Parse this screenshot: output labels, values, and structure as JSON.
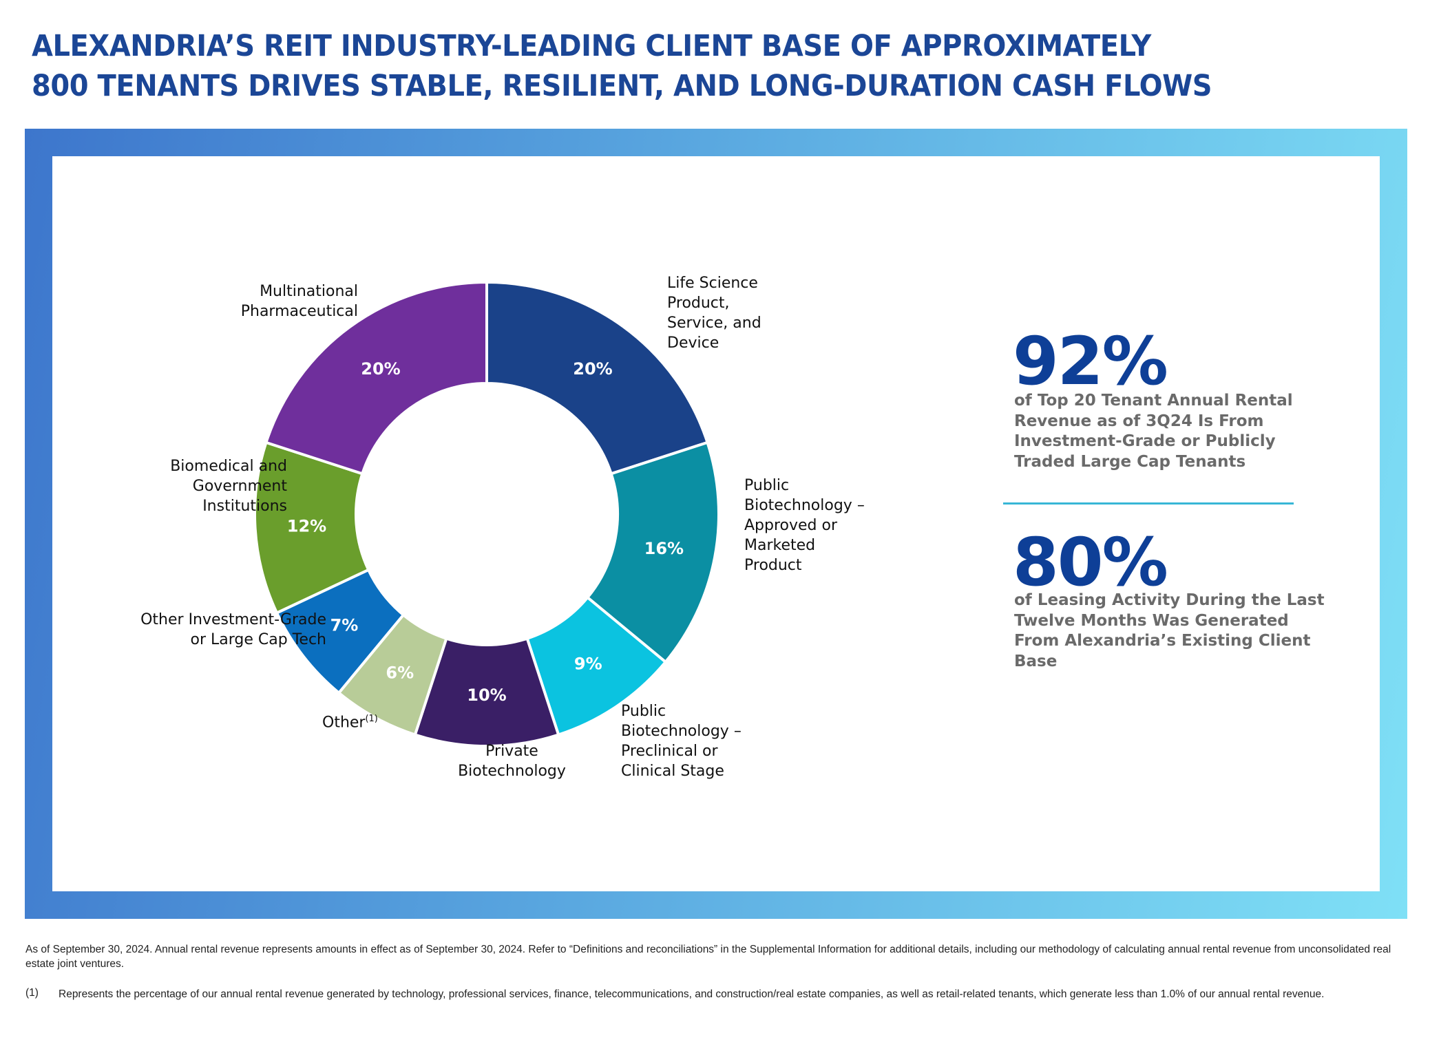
{
  "title": {
    "line1": "ALEXANDRIA’S REIT INDUSTRY-LEADING CLIENT BASE OF APPROXIMATELY",
    "line2": "800 TENANTS DRIVES STABLE, RESILIENT, AND LONG-DURATION CASH FLOWS"
  },
  "colors": {
    "title": "#1b4696",
    "stat": "#0e3f97",
    "stat_desc": "#6a6a6a",
    "divider": "#37b6d6",
    "frame_start": "#3d76cc",
    "frame_end": "#7fe0f6"
  },
  "chart_data": {
    "type": "pie",
    "variant": "donut",
    "title": "",
    "start": "12 o'clock, clockwise",
    "slices": [
      {
        "label": "Life Science Product, Service, and Device",
        "display_label": "Life Science\nProduct,\nService, and\nDevice",
        "value": 20,
        "value_label": "20%",
        "color": "#1a4289"
      },
      {
        "label": "Public Biotechnology – Approved or Marketed Product",
        "display_label": "Public\nBiotechnology –\nApproved or\nMarketed\nProduct",
        "value": 16,
        "value_label": "16%",
        "color": "#0b8fa3"
      },
      {
        "label": "Public Biotechnology – Preclinical or Clinical Stage",
        "display_label": "Public\nBiotechnology –\nPreclinical or\nClinical Stage",
        "value": 9,
        "value_label": "9%",
        "color": "#0bc3e0"
      },
      {
        "label": "Private Biotechnology",
        "display_label": "Private\nBiotechnology",
        "value": 10,
        "value_label": "10%",
        "color": "#3a1f66"
      },
      {
        "label": "Other(1)",
        "display_label": "Other",
        "footnote_marker": "(1)",
        "value": 6,
        "value_label": "6%",
        "color": "#b8cc98"
      },
      {
        "label": "Other Investment-Grade or Large Cap Tech",
        "display_label": "Other Investment-Grade\nor Large Cap Tech",
        "value": 7,
        "value_label": "7%",
        "color": "#0b6fbf"
      },
      {
        "label": "Biomedical and Government Institutions",
        "display_label": "Biomedical and\nGovernment\nInstitutions",
        "value": 12,
        "value_label": "12%",
        "color": "#6a9e2c"
      },
      {
        "label": "Multinational Pharmaceutical",
        "display_label": "Multinational\nPharmaceutical",
        "value": 20,
        "value_label": "20%",
        "color": "#6f2f9c"
      }
    ]
  },
  "stats": [
    {
      "value": "92%",
      "description": "of Top 20 Tenant Annual Rental Revenue as of 3Q24 Is From Investment-Grade or Publicly Traded Large Cap Tenants"
    },
    {
      "value": "80%",
      "description": "of Leasing Activity During the Last Twelve Months Was Generated From Alexandria’s Existing Client Base"
    }
  ],
  "footer": {
    "note": "As of September 30, 2024. Annual rental revenue represents amounts in effect as of September 30, 2024. Refer to “Definitions and reconciliations” in the Supplemental Information for additional details, including our methodology of calculating annual rental revenue from unconsolidated real estate joint ventures.",
    "footnote_marker": "(1)",
    "footnote_text": "Represents the percentage of our annual rental revenue generated by technology, professional services, finance, telecommunications, and construction/real estate companies, as well as retail-related tenants, which generate less than 1.0% of our annual rental revenue."
  }
}
